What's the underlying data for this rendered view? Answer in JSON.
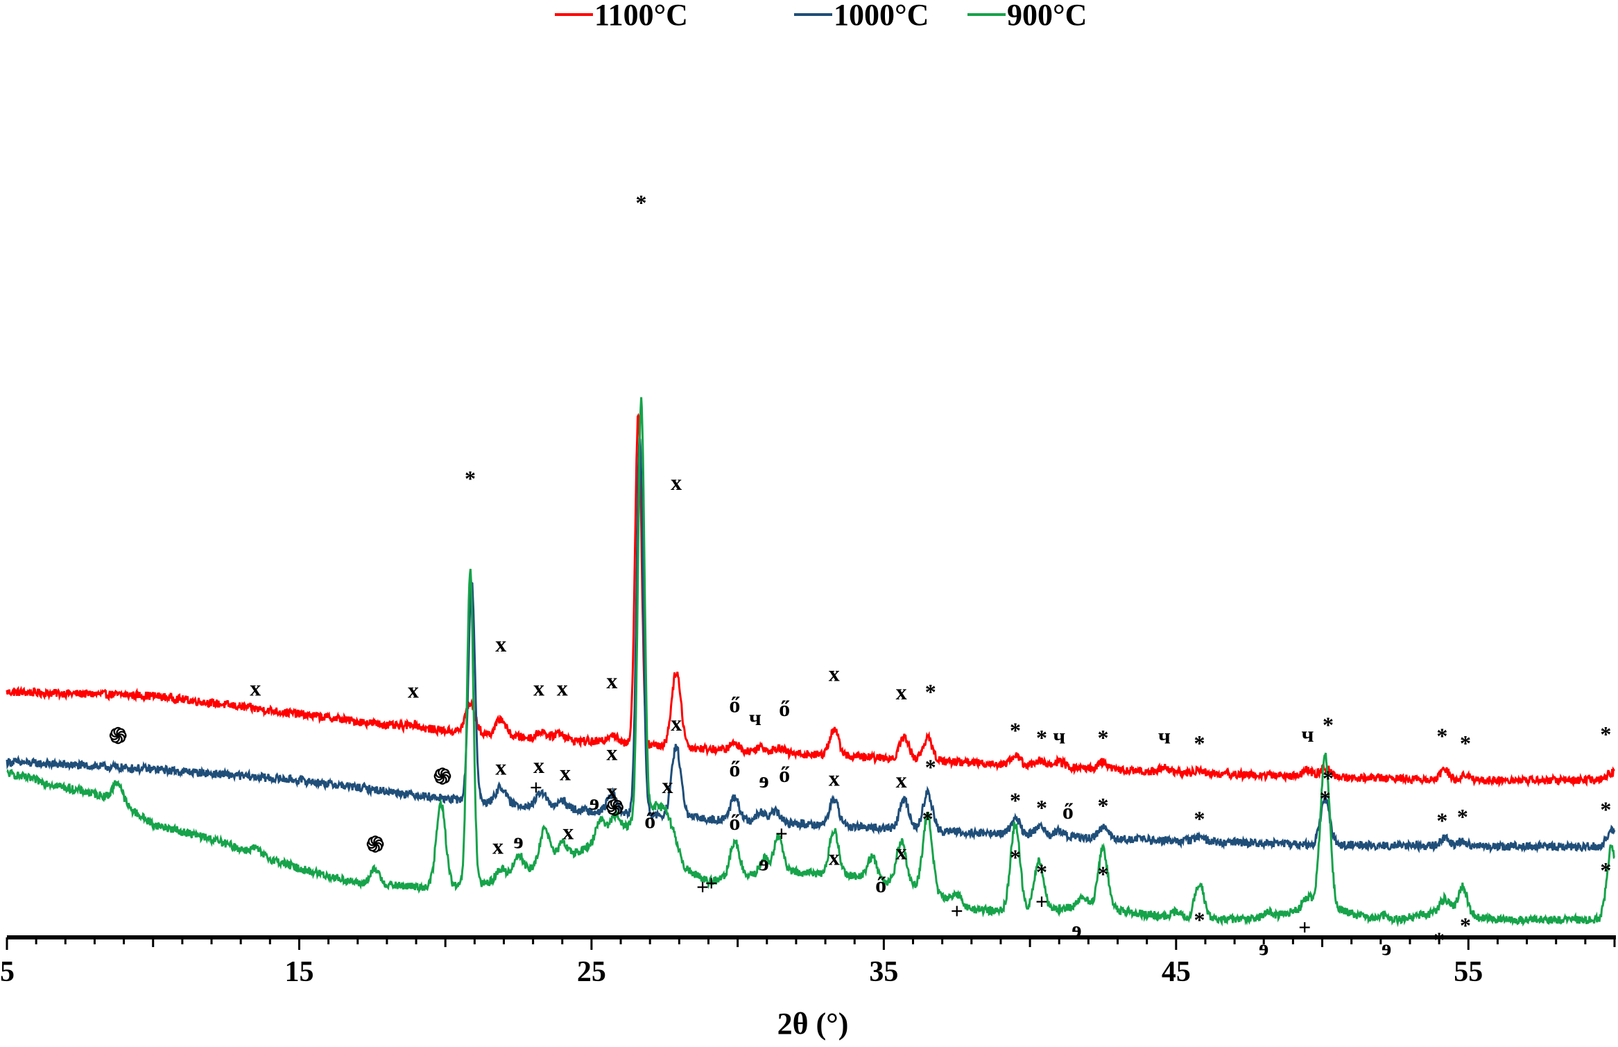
{
  "chart_data": {
    "type": "line",
    "title": "",
    "xlabel": "2θ (°)",
    "ylabel": "",
    "xlim": [
      5,
      60
    ],
    "x_ticks": [
      "5",
      "15",
      "25",
      "35",
      "45",
      "55"
    ],
    "legend": {
      "placement": "top-center"
    },
    "series": [
      {
        "name": "1100°C",
        "color": "#ff0000",
        "baseline": [
          [
            5,
            1.18
          ],
          [
            10,
            1.16
          ],
          [
            15,
            1.06
          ],
          [
            18,
            1.0
          ],
          [
            20,
            0.97
          ],
          [
            23,
            0.93
          ],
          [
            26,
            0.9
          ],
          [
            30,
            0.86
          ],
          [
            35,
            0.82
          ],
          [
            40,
            0.78
          ],
          [
            45,
            0.74
          ],
          [
            50,
            0.72
          ],
          [
            55,
            0.7
          ],
          [
            60,
            0.7
          ]
        ],
        "peaks": [
          [
            18.9,
            0.02
          ],
          [
            20.85,
            0.16
          ],
          [
            21.9,
            0.09
          ],
          [
            23.3,
            0.04
          ],
          [
            23.9,
            0.04
          ],
          [
            25.7,
            0.05
          ],
          [
            26.6,
            1.8
          ],
          [
            27.9,
            0.41
          ],
          [
            29.9,
            0.04
          ],
          [
            30.8,
            0.03
          ],
          [
            31.4,
            0.03
          ],
          [
            33.3,
            0.14
          ],
          [
            35.7,
            0.12
          ],
          [
            36.5,
            0.12
          ],
          [
            39.5,
            0.05
          ],
          [
            40.3,
            0.03
          ],
          [
            41,
            0.03
          ],
          [
            42.5,
            0.04
          ],
          [
            44.6,
            0.03
          ],
          [
            45.8,
            0.02
          ],
          [
            49.5,
            0.03
          ],
          [
            50.1,
            0.05
          ],
          [
            54.2,
            0.05
          ],
          [
            54.9,
            0.03
          ],
          [
            59.9,
            0.04
          ]
        ]
      },
      {
        "name": "1000°C",
        "color": "#1f4e79",
        "baseline": [
          [
            5,
            0.8
          ],
          [
            10,
            0.76
          ],
          [
            15,
            0.7
          ],
          [
            18,
            0.64
          ],
          [
            20,
            0.6
          ],
          [
            23,
            0.56
          ],
          [
            26,
            0.52
          ],
          [
            30,
            0.48
          ],
          [
            35,
            0.44
          ],
          [
            40,
            0.4
          ],
          [
            45,
            0.37
          ],
          [
            50,
            0.35
          ],
          [
            55,
            0.34
          ],
          [
            60,
            0.34
          ]
        ],
        "peaks": [
          [
            20.9,
            1.2
          ],
          [
            21.9,
            0.09
          ],
          [
            23.3,
            0.08
          ],
          [
            24,
            0.04
          ],
          [
            25.7,
            0.1
          ],
          [
            26.65,
            2.05
          ],
          [
            27.9,
            0.38
          ],
          [
            29.9,
            0.12
          ],
          [
            30.8,
            0.05
          ],
          [
            31.3,
            0.06
          ],
          [
            33.3,
            0.14
          ],
          [
            35.7,
            0.16
          ],
          [
            36.5,
            0.2
          ],
          [
            39.5,
            0.09
          ],
          [
            40.3,
            0.05
          ],
          [
            41,
            0.03
          ],
          [
            42.5,
            0.06
          ],
          [
            45.8,
            0.03
          ],
          [
            50.1,
            0.24
          ],
          [
            54.2,
            0.04
          ],
          [
            54.8,
            0.03
          ],
          [
            59.9,
            0.09
          ]
        ]
      },
      {
        "name": "900°C",
        "color": "#16a34a",
        "baseline": [
          [
            5,
            0.74
          ],
          [
            7,
            0.66
          ],
          [
            8.7,
            0.6
          ],
          [
            10,
            0.46
          ],
          [
            12,
            0.38
          ],
          [
            15,
            0.22
          ],
          [
            17,
            0.14
          ],
          [
            19,
            0.12
          ],
          [
            21,
            0.12
          ],
          [
            23,
            0.22
          ],
          [
            25,
            0.34
          ],
          [
            26,
            0.44
          ],
          [
            27.5,
            0.52
          ],
          [
            28.2,
            0.22
          ],
          [
            29,
            0.15
          ],
          [
            30,
            0.17
          ],
          [
            32,
            0.2
          ],
          [
            34,
            0.18
          ],
          [
            36,
            0.12
          ],
          [
            37,
            0.06
          ],
          [
            38,
            0.0
          ],
          [
            40,
            -0.02
          ],
          [
            42,
            0.02
          ],
          [
            44,
            -0.03
          ],
          [
            46,
            -0.06
          ],
          [
            48,
            -0.05
          ],
          [
            50,
            0.02
          ],
          [
            52,
            -0.07
          ],
          [
            54,
            -0.02
          ],
          [
            56,
            -0.06
          ],
          [
            60,
            -0.06
          ]
        ],
        "peaks": [
          [
            8.8,
            0.1
          ],
          [
            13.5,
            0.03
          ],
          [
            17.6,
            0.08
          ],
          [
            19.85,
            0.45
          ],
          [
            20.85,
            1.72
          ],
          [
            21.9,
            0.05
          ],
          [
            22.5,
            0.1
          ],
          [
            23.4,
            0.2
          ],
          [
            24,
            0.08
          ],
          [
            25.3,
            0.12
          ],
          [
            25.8,
            0.09
          ],
          [
            26.7,
            2.3
          ],
          [
            27.2,
            0.06
          ],
          [
            27.7,
            0.04
          ],
          [
            29.9,
            0.2
          ],
          [
            30.9,
            0.09
          ],
          [
            31.4,
            0.2
          ],
          [
            33.3,
            0.24
          ],
          [
            34.6,
            0.12
          ],
          [
            35.6,
            0.24
          ],
          [
            36.5,
            0.42
          ],
          [
            37.5,
            0.05
          ],
          [
            39.5,
            0.48
          ],
          [
            40.3,
            0.28
          ],
          [
            41.8,
            0.04
          ],
          [
            42.5,
            0.32
          ],
          [
            45,
            0.03
          ],
          [
            45.8,
            0.2
          ],
          [
            48.1,
            0.03
          ],
          [
            49.5,
            0.06
          ],
          [
            50.1,
            0.82
          ],
          [
            52.1,
            0.03
          ],
          [
            54.2,
            0.08
          ],
          [
            54.8,
            0.16
          ],
          [
            59.9,
            0.4
          ]
        ]
      }
    ],
    "annotations": [
      {
        "text": "*",
        "x": 26.7,
        "y": 3.8
      },
      {
        "text": "*",
        "x": 20.85,
        "y": 2.3
      },
      {
        "text": "x",
        "x": 27.9,
        "y": 2.28
      },
      {
        "text": "x",
        "x": 13.5,
        "y": 1.16
      },
      {
        "text": "x",
        "x": 18.9,
        "y": 1.15
      },
      {
        "text": "x",
        "x": 21.9,
        "y": 1.4
      },
      {
        "text": "x",
        "x": 23.2,
        "y": 1.16
      },
      {
        "text": "x",
        "x": 24.0,
        "y": 1.16
      },
      {
        "text": "x",
        "x": 25.7,
        "y": 1.2
      },
      {
        "text": "ő",
        "x": 29.9,
        "y": 1.07
      },
      {
        "text": "ч",
        "x": 30.6,
        "y": 1.0
      },
      {
        "text": "ő",
        "x": 31.6,
        "y": 1.05
      },
      {
        "text": "x",
        "x": 33.3,
        "y": 1.24
      },
      {
        "text": "x",
        "x": 35.6,
        "y": 1.14
      },
      {
        "text": "*",
        "x": 36.6,
        "y": 1.14
      },
      {
        "text": "*",
        "x": 39.5,
        "y": 0.93
      },
      {
        "text": "*",
        "x": 40.4,
        "y": 0.89
      },
      {
        "text": "ч",
        "x": 41.0,
        "y": 0.9
      },
      {
        "text": "*",
        "x": 42.5,
        "y": 0.89
      },
      {
        "text": "ч",
        "x": 44.6,
        "y": 0.9
      },
      {
        "text": "*",
        "x": 45.8,
        "y": 0.86
      },
      {
        "text": "ч",
        "x": 49.5,
        "y": 0.91
      },
      {
        "text": "*",
        "x": 50.2,
        "y": 0.96
      },
      {
        "text": "*",
        "x": 54.1,
        "y": 0.9
      },
      {
        "text": "*",
        "x": 54.9,
        "y": 0.86
      },
      {
        "text": "*",
        "x": 59.7,
        "y": 0.91
      },
      {
        "text": "x",
        "x": 27.9,
        "y": 0.97
      },
      {
        "text": "x",
        "x": 21.9,
        "y": 0.73
      },
      {
        "text": "x",
        "x": 23.2,
        "y": 0.74
      },
      {
        "text": "x",
        "x": 24.1,
        "y": 0.7
      },
      {
        "text": "x",
        "x": 25.7,
        "y": 0.81
      },
      {
        "text": "ő",
        "x": 29.9,
        "y": 0.72
      },
      {
        "text": "ɘ",
        "x": 30.9,
        "y": 0.66
      },
      {
        "text": "ő",
        "x": 31.6,
        "y": 0.69
      },
      {
        "text": "x",
        "x": 33.3,
        "y": 0.67
      },
      {
        "text": "x",
        "x": 35.6,
        "y": 0.66
      },
      {
        "text": "*",
        "x": 36.6,
        "y": 0.73
      },
      {
        "text": "*",
        "x": 39.5,
        "y": 0.55
      },
      {
        "text": "*",
        "x": 40.4,
        "y": 0.51
      },
      {
        "text": "ő",
        "x": 41.3,
        "y": 0.49
      },
      {
        "text": "*",
        "x": 42.5,
        "y": 0.52
      },
      {
        "text": "*",
        "x": 45.8,
        "y": 0.45
      },
      {
        "text": "*",
        "x": 50.2,
        "y": 0.67
      },
      {
        "text": "*",
        "x": 54.1,
        "y": 0.44
      },
      {
        "text": "*",
        "x": 54.8,
        "y": 0.46
      },
      {
        "text": "*",
        "x": 59.7,
        "y": 0.5
      },
      {
        "text": "֍",
        "x": 8.8,
        "y": 0.9
      },
      {
        "text": "֍",
        "x": 17.6,
        "y": 0.31
      },
      {
        "text": "֍",
        "x": 19.9,
        "y": 0.68
      },
      {
        "text": "x",
        "x": 21.8,
        "y": 0.3
      },
      {
        "text": "ɘ",
        "x": 22.5,
        "y": 0.33
      },
      {
        "text": "+",
        "x": 23.1,
        "y": 0.62
      },
      {
        "text": "x",
        "x": 24.2,
        "y": 0.38
      },
      {
        "text": "ɘ",
        "x": 25.1,
        "y": 0.54
      },
      {
        "text": "֍",
        "x": 25.8,
        "y": 0.51
      },
      {
        "text": "x",
        "x": 25.7,
        "y": 0.6
      },
      {
        "text": "ő",
        "x": 27.0,
        "y": 0.44
      },
      {
        "text": "x",
        "x": 27.6,
        "y": 0.63
      },
      {
        "text": "+",
        "x": 28.8,
        "y": 0.08
      },
      {
        "text": "+",
        "x": 29.1,
        "y": 0.1
      },
      {
        "text": "ő",
        "x": 29.9,
        "y": 0.43
      },
      {
        "text": "ɘ",
        "x": 30.9,
        "y": 0.21
      },
      {
        "text": "+",
        "x": 31.5,
        "y": 0.37
      },
      {
        "text": "x",
        "x": 33.3,
        "y": 0.24
      },
      {
        "text": "ő",
        "x": 34.9,
        "y": 0.09
      },
      {
        "text": "x",
        "x": 35.6,
        "y": 0.27
      },
      {
        "text": "*",
        "x": 36.5,
        "y": 0.45
      },
      {
        "text": "+",
        "x": 37.5,
        "y": -0.05
      },
      {
        "text": "*",
        "x": 39.5,
        "y": 0.24
      },
      {
        "text": "+",
        "x": 40.4,
        "y": 0.0
      },
      {
        "text": "*",
        "x": 40.4,
        "y": 0.16
      },
      {
        "text": "ɘ",
        "x": 41.6,
        "y": -0.15
      },
      {
        "text": "*",
        "x": 42.5,
        "y": 0.15
      },
      {
        "text": "*",
        "x": 45.8,
        "y": -0.1
      },
      {
        "text": "ɘ",
        "x": 48.0,
        "y": -0.25
      },
      {
        "text": "+",
        "x": 49.4,
        "y": -0.14
      },
      {
        "text": "*",
        "x": 50.1,
        "y": 0.56
      },
      {
        "text": "ɘ",
        "x": 52.2,
        "y": -0.25
      },
      {
        "text": "*",
        "x": 54.0,
        "y": -0.21
      },
      {
        "text": "*",
        "x": 54.9,
        "y": -0.13
      },
      {
        "text": "*",
        "x": 59.7,
        "y": 0.17
      }
    ]
  }
}
